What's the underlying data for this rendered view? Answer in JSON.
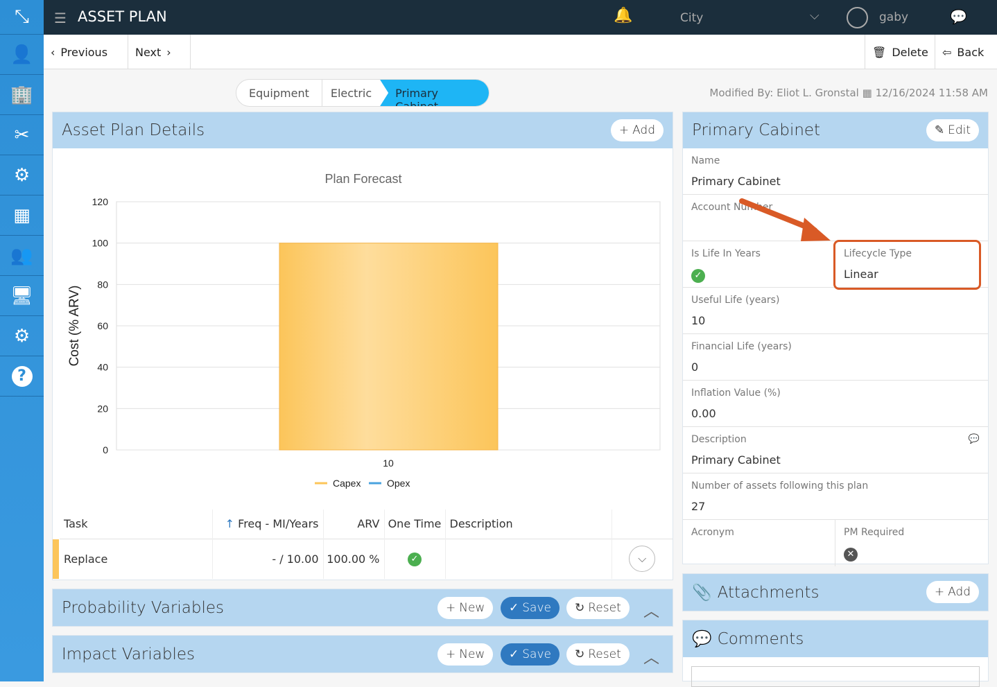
{
  "app": {
    "title": "ASSET PLAN",
    "city": "City",
    "user": "gaby"
  },
  "sidebar": {
    "items": [
      {
        "icon": "logo-icon"
      },
      {
        "icon": "user-icon"
      },
      {
        "icon": "building-icon"
      },
      {
        "icon": "tools-icon"
      },
      {
        "icon": "head-gear-icon"
      },
      {
        "icon": "store-icon"
      },
      {
        "icon": "meeting-icon"
      },
      {
        "icon": "monitor-chart-icon"
      },
      {
        "icon": "gear-icon"
      },
      {
        "icon": "help-icon"
      }
    ]
  },
  "toolbar": {
    "previous": "Previous",
    "next": "Next",
    "delete": "Delete",
    "back": "Back"
  },
  "breadcrumb": [
    "Equipment",
    "Electric",
    "Primary Cabinet"
  ],
  "modified": {
    "by": "Modified By: Eliot L. Gronstal",
    "date": "12/16/2024 11:58 AM"
  },
  "details": {
    "title": "Asset Plan Details",
    "add": "Add"
  },
  "chart_data": {
    "type": "bar",
    "title": "Plan Forecast",
    "ylabel": "Cost (% ARV)",
    "xlabel": "",
    "categories": [
      "10"
    ],
    "series": [
      {
        "name": "Capex",
        "color": "#fcc55a",
        "values": [
          100
        ]
      },
      {
        "name": "Opex",
        "color": "#4aa3df",
        "values": [
          0
        ]
      }
    ],
    "ylim": [
      0,
      120
    ],
    "yticks": [
      "0",
      "20",
      "40",
      "60",
      "80",
      "100",
      "120"
    ],
    "grid": true,
    "legend": "bottom"
  },
  "table": {
    "headers": [
      "Task",
      "Freq - MI/Years",
      "ARV",
      "One Time",
      "Description"
    ],
    "rows": [
      {
        "task": "Replace",
        "freq": "- / 10.00",
        "arv": "100.00 %",
        "one_time": true,
        "description": ""
      }
    ]
  },
  "sections": [
    {
      "title": "Probability Variables",
      "new": "New",
      "save": "Save",
      "reset": "Reset"
    },
    {
      "title": "Impact Variables",
      "new": "New",
      "save": "Save",
      "reset": "Reset"
    }
  ],
  "cabinet": {
    "title": "Primary Cabinet",
    "edit": "Edit",
    "name_label": "Name",
    "name": "Primary Cabinet",
    "account_label": "Account Number",
    "account": "",
    "life_years_label": "Is Life In Years",
    "life_years": true,
    "lifecycle_label": "Lifecycle Type",
    "lifecycle": "Linear",
    "useful_label": "Useful Life (years)",
    "useful": "10",
    "financial_label": "Financial Life (years)",
    "financial": "0",
    "inflation_label": "Inflation Value (%)",
    "inflation": "0.00",
    "desc_label": "Description",
    "desc": "Primary Cabinet",
    "assets_label": "Number of assets following this plan",
    "assets": "27",
    "acronym_label": "Acronym",
    "acronym": "",
    "pm_label": "PM Required",
    "pm": false
  },
  "attachments": {
    "title": "Attachments",
    "add": "Add"
  },
  "comments": {
    "title": "Comments"
  },
  "colors": {
    "accent": "#2f79c0",
    "header": "#b5d6f0",
    "breadcrumb_active": "#1eb5f5",
    "highlight": "#d95a26"
  }
}
